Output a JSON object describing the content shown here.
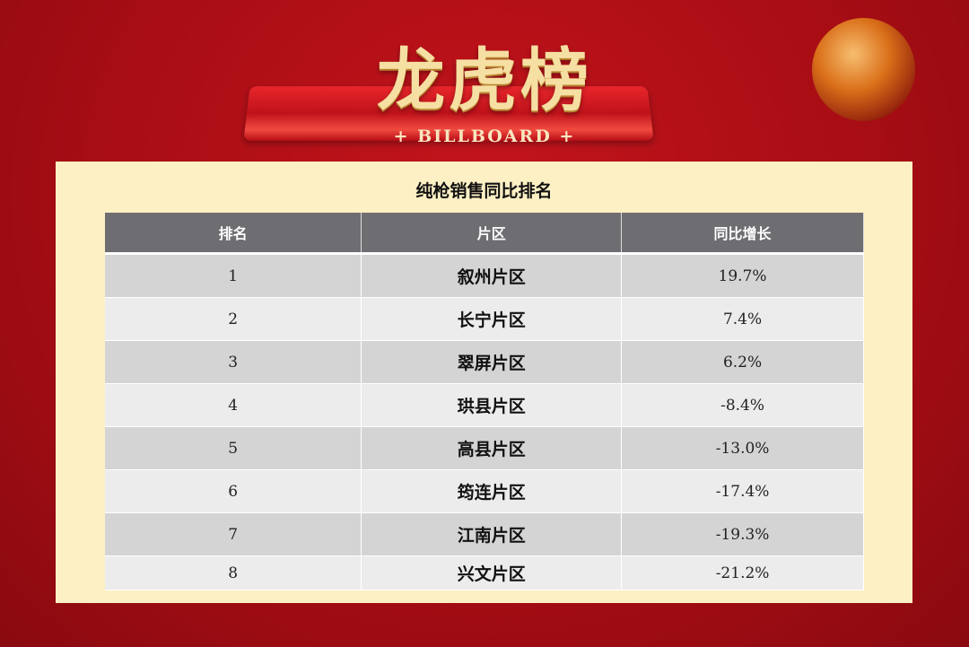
{
  "banner": {
    "title": "龙虎榜",
    "subtitle": "+ BILLBOARD +"
  },
  "panel": {
    "title": "纯枪销售同比排名"
  },
  "table": {
    "headers": [
      "排名",
      "片区",
      "同比增长"
    ],
    "rows": [
      [
        "1",
        "叙州片区",
        "19.7%"
      ],
      [
        "2",
        "长宁片区",
        "7.4%"
      ],
      [
        "3",
        "翠屏片区",
        "6.2%"
      ],
      [
        "4",
        "珙县片区",
        "-8.4%"
      ],
      [
        "5",
        "高县片区",
        "-13.0%"
      ],
      [
        "6",
        "筠连片区",
        "-17.4%"
      ],
      [
        "7",
        "江南片区",
        "-19.3%"
      ],
      [
        "8",
        "兴文片区",
        "-21.2%"
      ]
    ]
  },
  "colors": {
    "background": "#a80d14",
    "panel": "#fdf0c4",
    "header": "#6e6d72",
    "row_odd": "#d4d4d4",
    "row_even": "#ececec",
    "title_gold": "#f6dfa2"
  }
}
